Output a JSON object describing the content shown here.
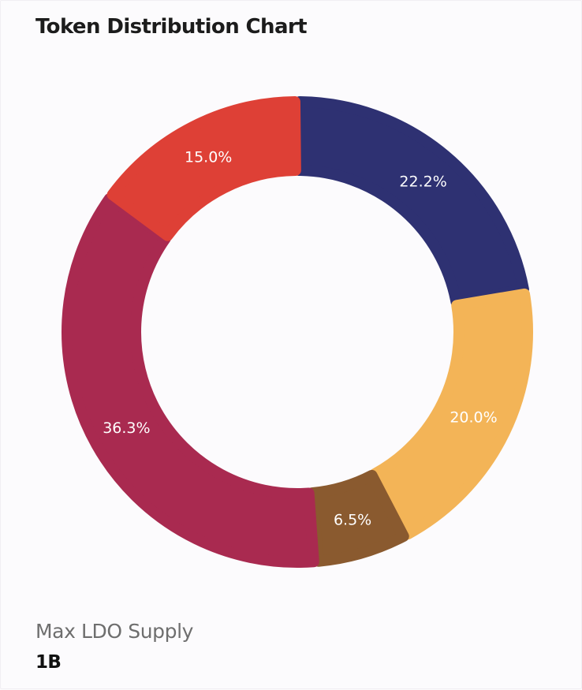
{
  "header": {
    "title": "Token Distribution Chart"
  },
  "chart_data": {
    "type": "pie",
    "variant": "donut",
    "categories": [
      "",
      "",
      "",
      "",
      ""
    ],
    "values": [
      22.2,
      20.0,
      6.5,
      36.3,
      15.0
    ],
    "labels": [
      "22.2%",
      "20.0%",
      "6.5%",
      "36.3%",
      "15.0%"
    ],
    "colors": [
      "#2e3172",
      "#f3b457",
      "#8a5a2f",
      "#a92a50",
      "#de4036"
    ],
    "start": "12 o'clock",
    "direction": "clockwise"
  },
  "supply": {
    "label": "Max LDO Supply",
    "value": "1B"
  }
}
